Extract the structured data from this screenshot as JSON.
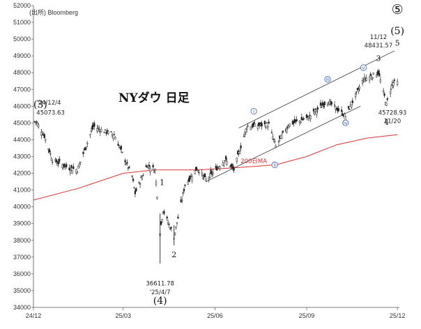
{
  "source": "(出所) Bloomberg",
  "title": "NYダウ 日足",
  "chart_data": {
    "type": "candlestick",
    "ylim": [
      34000,
      52000
    ],
    "y_ticks": [
      34000,
      35000,
      36000,
      37000,
      38000,
      39000,
      40000,
      41000,
      42000,
      43000,
      44000,
      45000,
      46000,
      47000,
      48000,
      49000,
      50000,
      51000,
      52000
    ],
    "x_ticks": [
      {
        "date": "2024-12-01",
        "label": "24/12"
      },
      {
        "date": "2025-03-01",
        "label": "25/03"
      },
      {
        "date": "2025-06-01",
        "label": "25/06"
      },
      {
        "date": "2025-09-01",
        "label": "25/09"
      },
      {
        "date": "2025-12-01",
        "label": "25/12"
      }
    ],
    "x_range": [
      "2024-12-01",
      "2025-12-03"
    ],
    "price_anchors": [
      {
        "date": "2024-12-04",
        "close": 45073
      },
      {
        "date": "2024-12-12",
        "close": 44200
      },
      {
        "date": "2024-12-20",
        "close": 42800
      },
      {
        "date": "2025-01-06",
        "close": 42300
      },
      {
        "date": "2025-01-14",
        "close": 42200
      },
      {
        "date": "2025-01-30",
        "close": 44800
      },
      {
        "date": "2025-02-10",
        "close": 44500
      },
      {
        "date": "2025-02-20",
        "close": 44300
      },
      {
        "date": "2025-03-10",
        "close": 41800
      },
      {
        "date": "2025-03-13",
        "close": 40800
      },
      {
        "date": "2025-03-25",
        "close": 42500
      },
      {
        "date": "2025-04-02",
        "close": 42200
      },
      {
        "date": "2025-04-07",
        "close": 38500
      },
      {
        "date": "2025-04-10",
        "close": 39800
      },
      {
        "date": "2025-04-21",
        "close": 38200
      },
      {
        "date": "2025-05-02",
        "close": 41300
      },
      {
        "date": "2025-05-14",
        "close": 42300
      },
      {
        "date": "2025-05-23",
        "close": 41600
      },
      {
        "date": "2025-06-11",
        "close": 42800
      },
      {
        "date": "2025-06-20",
        "close": 42200
      },
      {
        "date": "2025-07-03",
        "close": 44800
      },
      {
        "date": "2025-07-25",
        "close": 44900
      },
      {
        "date": "2025-08-01",
        "close": 43600
      },
      {
        "date": "2025-08-14",
        "close": 44900
      },
      {
        "date": "2025-09-02",
        "close": 45300
      },
      {
        "date": "2025-09-22",
        "close": 46300
      },
      {
        "date": "2025-10-10",
        "close": 45400
      },
      {
        "date": "2025-10-28",
        "close": 47600
      },
      {
        "date": "2025-11-12",
        "close": 48000
      },
      {
        "date": "2025-11-20",
        "close": 46100
      },
      {
        "date": "2025-11-26",
        "close": 47400
      },
      {
        "date": "2025-12-01",
        "close": 47400
      }
    ],
    "ma200": {
      "label": "200日MA",
      "color": "#e03030",
      "points": [
        {
          "date": "2024-12-01",
          "value": 40400
        },
        {
          "date": "2025-01-15",
          "value": 41100
        },
        {
          "date": "2025-03-01",
          "value": 42000
        },
        {
          "date": "2025-04-01",
          "value": 42200
        },
        {
          "date": "2025-05-15",
          "value": 42200
        },
        {
          "date": "2025-06-15",
          "value": 42300
        },
        {
          "date": "2025-08-01",
          "value": 42500
        },
        {
          "date": "2025-09-01",
          "value": 43000
        },
        {
          "date": "2025-10-01",
          "value": 43700
        },
        {
          "date": "2025-11-01",
          "value": 44100
        },
        {
          "date": "2025-12-01",
          "value": 44300
        }
      ]
    },
    "channel": {
      "upper": [
        {
          "date": "2025-06-25",
          "value": 44700
        },
        {
          "date": "2025-11-28",
          "value": 49300
        }
      ],
      "lower": [
        {
          "date": "2025-05-23",
          "value": 41500
        },
        {
          "date": "2025-10-25",
          "value": 46000
        }
      ]
    },
    "annotations": [
      {
        "date": "2024-12-01",
        "price": 45900,
        "text": "(3)",
        "kind": "wave",
        "size": "large"
      },
      {
        "date": "2024-12-04",
        "price": 46100,
        "text": "'24/12/4",
        "kind": "note"
      },
      {
        "date": "2024-12-04",
        "price": 45500,
        "text": "45073.63",
        "kind": "note"
      },
      {
        "date": "2025-04-07",
        "price": 34200,
        "text": "(4)",
        "kind": "wave",
        "size": "large"
      },
      {
        "date": "2025-04-07",
        "price": 35300,
        "text": "36611.78",
        "kind": "note"
      },
      {
        "date": "2025-04-07",
        "price": 34800,
        "text": "'25/4/7",
        "kind": "note"
      },
      {
        "date": "2025-04-09",
        "price": 41300,
        "text": "1",
        "kind": "wave",
        "size": "small"
      },
      {
        "date": "2025-04-21",
        "price": 37000,
        "text": "2",
        "kind": "wave",
        "size": "small"
      },
      {
        "date": "2025-11-12",
        "price": 48700,
        "text": "3",
        "kind": "wave",
        "size": "small"
      },
      {
        "date": "2025-11-20",
        "price": 44900,
        "text": "4",
        "kind": "wave",
        "size": "small"
      },
      {
        "date": "2025-12-01",
        "price": 49600,
        "text": "5",
        "kind": "wave",
        "size": "small"
      },
      {
        "date": "2025-12-01",
        "price": 50300,
        "text": "(5)",
        "kind": "wave",
        "size": "large"
      },
      {
        "date": "2025-12-01",
        "price": 51500,
        "text": "⑤",
        "kind": "wave",
        "size": "xlarge"
      },
      {
        "date": "2025-11-12",
        "price": 50000,
        "text": "11/12",
        "kind": "note"
      },
      {
        "date": "2025-11-12",
        "price": 49500,
        "text": "48431.57",
        "kind": "note"
      },
      {
        "date": "2025-11-26",
        "price": 45500,
        "text": "45728.93",
        "kind": "note"
      },
      {
        "date": "2025-11-26",
        "price": 45000,
        "text": "11/20",
        "kind": "note"
      },
      {
        "date": "2025-07-10",
        "price": 42600,
        "text": "200日MA",
        "kind": "ma"
      }
    ],
    "sub_waves": [
      {
        "date": "2025-07-10",
        "price": 45700,
        "text": "i"
      },
      {
        "date": "2025-07-31",
        "price": 42500,
        "text": "ii"
      },
      {
        "date": "2025-09-22",
        "price": 47600,
        "text": "iii"
      },
      {
        "date": "2025-10-10",
        "price": 45000,
        "text": "iv"
      },
      {
        "date": "2025-10-28",
        "price": 48300,
        "text": "v"
      }
    ]
  }
}
